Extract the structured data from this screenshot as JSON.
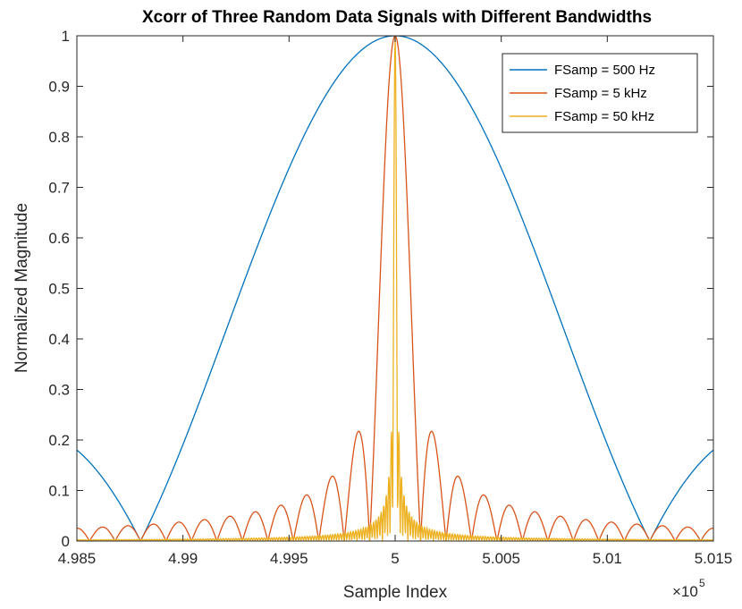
{
  "chart_data": {
    "type": "line",
    "title": "Xcorr of Three Random Data Signals with Different Bandwidths",
    "xlabel": "Sample Index",
    "ylabel": "Normalized Magnitude",
    "x_exponent_base": "×10",
    "x_exponent_power": "5",
    "xlim": [
      4.985,
      5.015
    ],
    "ylim": [
      0,
      1
    ],
    "x_ticks": [
      4.985,
      4.99,
      4.995,
      5,
      5.005,
      5.01,
      5.015
    ],
    "x_tick_labels": [
      "4.985",
      "4.99",
      "4.995",
      "5",
      "5.005",
      "5.01",
      "5.015"
    ],
    "y_ticks": [
      0,
      0.1,
      0.2,
      0.3,
      0.4,
      0.5,
      0.6,
      0.7,
      0.8,
      0.9,
      1
    ],
    "y_tick_labels": [
      "0",
      "0.1",
      "0.2",
      "0.3",
      "0.4",
      "0.5",
      "0.6",
      "0.7",
      "0.8",
      "0.9",
      "1"
    ],
    "grid": false,
    "legend_position": "top-right",
    "series": [
      {
        "name": "FSamp = 500 Hz",
        "color": "#0072BD",
        "shape": "sinc",
        "center": 5.0,
        "lobe_halfwidth": 0.012
      },
      {
        "name": "FSamp = 5 kHz",
        "color": "#D95319",
        "shape": "sinc",
        "center": 5.0,
        "lobe_halfwidth": 0.0012
      },
      {
        "name": "FSamp = 50 kHz",
        "color": "#EDB120",
        "shape": "sinc",
        "center": 5.0,
        "lobe_halfwidth": 0.00012
      }
    ]
  }
}
